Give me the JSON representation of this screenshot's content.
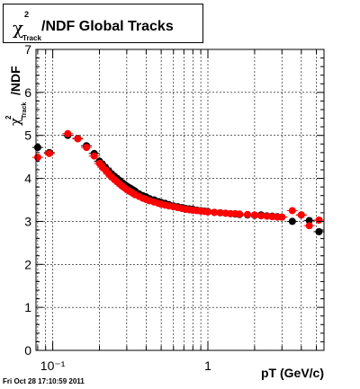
{
  "title": {
    "chi": "χ",
    "sup": "2",
    "sub": "Track",
    "text": "/NDF  Global Tracks"
  },
  "timestamp": "Fri Oct 28 17:10:59 2011",
  "chart_data": {
    "type": "scatter",
    "xscale": "log",
    "xlabel": "pT (GeV/c)",
    "ylabel": "χ²Track/NDF",
    "xlim": [
      0.078,
      5.6
    ],
    "ylim": [
      0,
      7
    ],
    "grid": true,
    "yticks": [
      0,
      1,
      2,
      3,
      4,
      5,
      6,
      7
    ],
    "xticks": [
      {
        "value": 0.1,
        "label": "10⁻¹"
      },
      {
        "value": 1,
        "label": "1"
      }
    ],
    "series": [
      {
        "color": "#000000",
        "x": [
          0.08,
          0.095,
          0.125,
          0.145,
          0.165,
          0.185,
          0.2,
          0.21,
          0.22,
          0.23,
          0.24,
          0.25,
          0.26,
          0.27,
          0.28,
          0.29,
          0.3,
          0.31,
          0.32,
          0.33,
          0.34,
          0.36,
          0.38,
          0.4,
          0.42,
          0.45,
          0.48,
          0.5,
          0.53,
          0.56,
          0.6,
          0.64,
          0.68,
          0.72,
          0.76,
          0.8,
          0.85,
          0.9,
          0.95,
          1.0,
          1.1,
          1.2,
          1.3,
          1.4,
          1.5,
          1.6,
          1.8,
          2.0,
          2.2,
          2.4,
          2.6,
          2.8,
          3.0,
          3.5,
          4.0,
          4.5,
          5.2
        ],
        "y": [
          4.72,
          4.6,
          5.0,
          4.93,
          4.76,
          4.58,
          4.4,
          4.32,
          4.24,
          4.17,
          4.1,
          4.05,
          4.0,
          3.95,
          3.9,
          3.86,
          3.82,
          3.79,
          3.76,
          3.73,
          3.7,
          3.64,
          3.6,
          3.57,
          3.53,
          3.5,
          3.46,
          3.44,
          3.42,
          3.39,
          3.36,
          3.34,
          3.32,
          3.3,
          3.29,
          3.28,
          3.26,
          3.25,
          3.24,
          3.23,
          3.21,
          3.2,
          3.19,
          3.18,
          3.17,
          3.16,
          3.15,
          3.14,
          3.15,
          3.13,
          3.12,
          3.11,
          3.1,
          3.0,
          3.15,
          3.02,
          2.76
        ]
      },
      {
        "color": "#ff0000",
        "x": [
          0.08,
          0.095,
          0.125,
          0.145,
          0.165,
          0.185,
          0.2,
          0.21,
          0.22,
          0.23,
          0.24,
          0.25,
          0.26,
          0.27,
          0.28,
          0.29,
          0.3,
          0.31,
          0.32,
          0.33,
          0.34,
          0.36,
          0.38,
          0.4,
          0.42,
          0.45,
          0.48,
          0.5,
          0.53,
          0.56,
          0.6,
          0.64,
          0.68,
          0.72,
          0.76,
          0.8,
          0.85,
          0.9,
          0.95,
          1.0,
          1.1,
          1.2,
          1.3,
          1.4,
          1.5,
          1.6,
          1.8,
          2.0,
          2.2,
          2.4,
          2.6,
          2.8,
          3.0,
          3.5,
          4.0,
          4.5,
          5.2
        ],
        "y": [
          4.49,
          4.58,
          5.04,
          4.92,
          4.72,
          4.52,
          4.35,
          4.26,
          4.18,
          4.1,
          4.03,
          3.97,
          3.92,
          3.87,
          3.82,
          3.78,
          3.74,
          3.71,
          3.68,
          3.65,
          3.62,
          3.58,
          3.54,
          3.51,
          3.48,
          3.45,
          3.42,
          3.4,
          3.38,
          3.36,
          3.34,
          3.32,
          3.3,
          3.28,
          3.27,
          3.26,
          3.25,
          3.24,
          3.23,
          3.22,
          3.21,
          3.2,
          3.19,
          3.18,
          3.18,
          3.17,
          3.16,
          3.15,
          3.13,
          3.12,
          3.11,
          3.1,
          3.1,
          3.25,
          3.15,
          2.9,
          3.03
        ]
      }
    ]
  }
}
